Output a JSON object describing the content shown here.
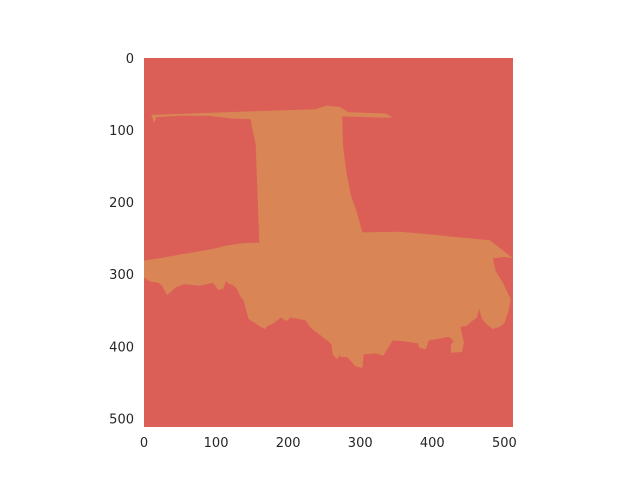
{
  "chart_data": {
    "type": "heatmap",
    "title": "",
    "xlabel": "",
    "ylabel": "",
    "xlim": [
      0,
      512
    ],
    "ylim": [
      512,
      0
    ],
    "x_ticks": [
      0,
      100,
      200,
      300,
      400,
      500
    ],
    "y_ticks": [
      0,
      100,
      200,
      300,
      400,
      500
    ],
    "grid": false,
    "legend": "none",
    "background_class_color": "#db5f57",
    "foreground_class_color": "#d98555",
    "foreground_polygon": [
      [
        153,
        74
      ],
      [
        238,
        71
      ],
      [
        253,
        66
      ],
      [
        272,
        68
      ],
      [
        283,
        75
      ],
      [
        335,
        77
      ],
      [
        345,
        82
      ],
      [
        338,
        83
      ],
      [
        275,
        81
      ],
      [
        276,
        120
      ],
      [
        281,
        160
      ],
      [
        287,
        190
      ],
      [
        295,
        213
      ],
      [
        303,
        242
      ],
      [
        355,
        241
      ],
      [
        400,
        245
      ],
      [
        440,
        249
      ],
      [
        480,
        253
      ],
      [
        512,
        278
      ],
      [
        500,
        276
      ],
      [
        484,
        278
      ],
      [
        488,
        296
      ],
      [
        497,
        310
      ],
      [
        509,
        335
      ],
      [
        506,
        350
      ],
      [
        500,
        368
      ],
      [
        494,
        373
      ],
      [
        484,
        376
      ],
      [
        476,
        370
      ],
      [
        469,
        362
      ],
      [
        465,
        348
      ],
      [
        462,
        360
      ],
      [
        455,
        365
      ],
      [
        447,
        372
      ],
      [
        439,
        373
      ],
      [
        444,
        395
      ],
      [
        441,
        408
      ],
      [
        426,
        409
      ],
      [
        426,
        398
      ],
      [
        430,
        393
      ],
      [
        423,
        387
      ],
      [
        395,
        392
      ],
      [
        391,
        404
      ],
      [
        382,
        402
      ],
      [
        380,
        396
      ],
      [
        360,
        393
      ],
      [
        345,
        392
      ],
      [
        332,
        413
      ],
      [
        322,
        410
      ],
      [
        305,
        411
      ],
      [
        303,
        430
      ],
      [
        294,
        428
      ],
      [
        282,
        415
      ],
      [
        273,
        415
      ],
      [
        272,
        412
      ],
      [
        268,
        418
      ],
      [
        262,
        412
      ],
      [
        260,
        398
      ],
      [
        257,
        394
      ],
      [
        232,
        375
      ],
      [
        224,
        364
      ],
      [
        203,
        360
      ],
      [
        198,
        365
      ],
      [
        190,
        360
      ],
      [
        180,
        368
      ],
      [
        171,
        372
      ],
      [
        168,
        376
      ],
      [
        160,
        372
      ],
      [
        150,
        365
      ],
      [
        145,
        362
      ],
      [
        138,
        336
      ],
      [
        133,
        330
      ],
      [
        130,
        322
      ],
      [
        127,
        318
      ],
      [
        123,
        315
      ],
      [
        117,
        313
      ],
      [
        114,
        309
      ],
      [
        110,
        320
      ],
      [
        103,
        322
      ],
      [
        99,
        316
      ],
      [
        95,
        312
      ],
      [
        78,
        316
      ],
      [
        56,
        314
      ],
      [
        44,
        318
      ],
      [
        38,
        324
      ],
      [
        32,
        329
      ],
      [
        25,
        316
      ],
      [
        20,
        312
      ],
      [
        8,
        310
      ],
      [
        0,
        305
      ],
      [
        0,
        281
      ],
      [
        20,
        278
      ],
      [
        55,
        272
      ],
      [
        95,
        265
      ],
      [
        115,
        260
      ],
      [
        137,
        257
      ],
      [
        160,
        256
      ],
      [
        155,
        120
      ],
      [
        150,
        97
      ],
      [
        148,
        85
      ],
      [
        120,
        84
      ],
      [
        90,
        80
      ],
      [
        50,
        80
      ],
      [
        17,
        82
      ],
      [
        14,
        90
      ],
      [
        10,
        79
      ]
    ]
  }
}
